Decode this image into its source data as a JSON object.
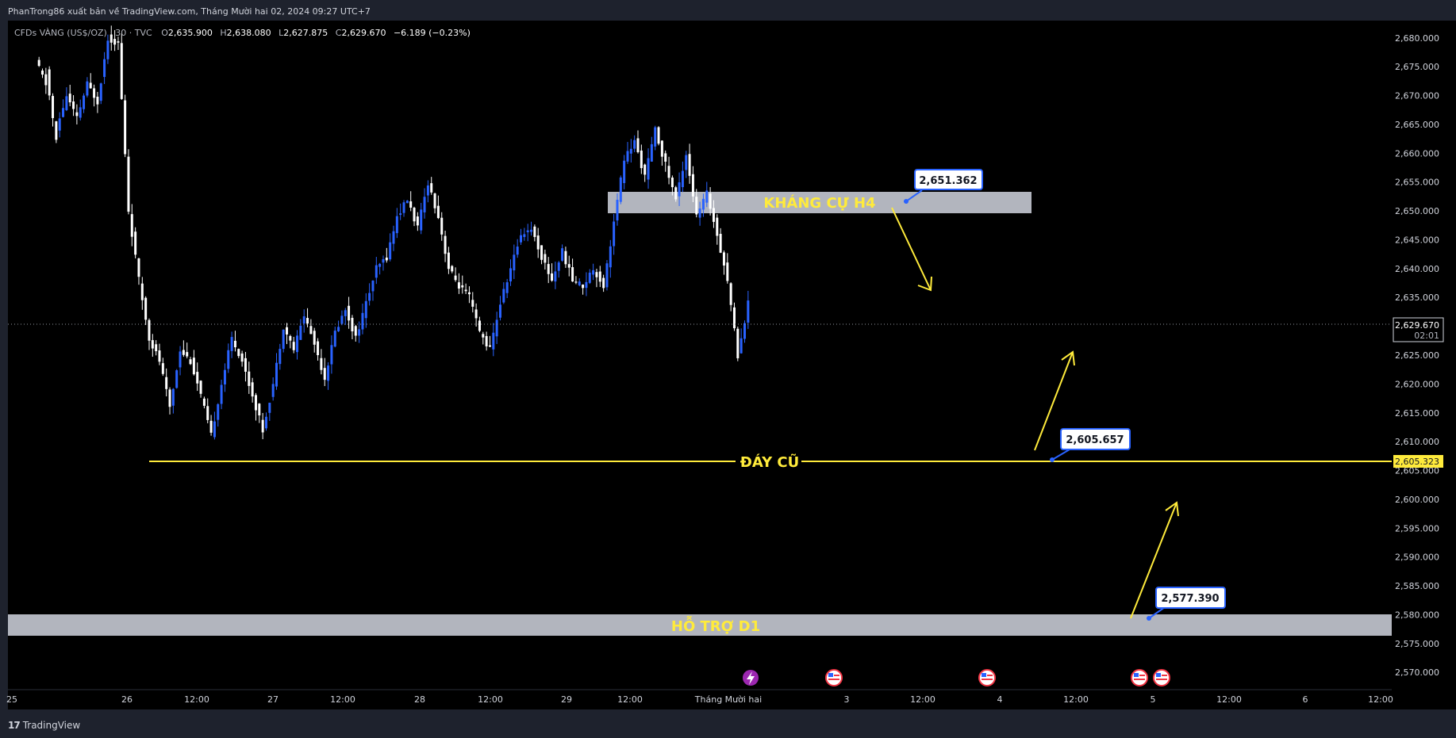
{
  "header": {
    "publish_line": "PhanTrong86 xuất bản về TradingView.com, Tháng Mười hai 02, 2024 09:27 UTC+7"
  },
  "legend": {
    "symbol": "CFDs VÀNG (US$/OZ) · 30 · TVC",
    "o_label": "O",
    "o": "2,635.900",
    "h_label": "H",
    "h": "2,638.080",
    "l_label": "L",
    "l": "2,627.875",
    "c_label": "C",
    "c": "2,629.670",
    "change": "−6.189 (−0.23%)"
  },
  "price_scale": {
    "ticks": [
      "2,680.000",
      "2,675.000",
      "2,670.000",
      "2,665.000",
      "2,660.000",
      "2,655.000",
      "2,650.000",
      "2,645.000",
      "2,640.000",
      "2,635.000",
      "2,630.000",
      "2,625.000",
      "2,620.000",
      "2,615.000",
      "2,610.000",
      "2,605.000",
      "2,600.000",
      "2,595.000",
      "2,590.000",
      "2,585.000",
      "2,580.000",
      "2,575.000",
      "2,570.000"
    ],
    "last_price_label": "2,629.670",
    "countdown": "02:01",
    "line_price_label": "2,605.323"
  },
  "time_scale": {
    "ticks": [
      "25",
      "26",
      "12:00",
      "27",
      "12:00",
      "28",
      "12:00",
      "29",
      "12:00",
      "Tháng Mười hai",
      "3",
      "12:00",
      "4",
      "12:00",
      "5",
      "12:00",
      "6",
      "12:00"
    ]
  },
  "annotations": {
    "resistance_label": "KHÁNG CỰ H4",
    "old_low_label": "ĐÁY CŨ",
    "support_label": "HỖ TRỢ D1",
    "callout_resistance": "2,651.362",
    "callout_old_low": "2,605.657",
    "callout_support": "2,577.390"
  },
  "footer": {
    "brand": "TradingView"
  },
  "colors": {
    "background": "#000000",
    "frame": "#1e222d",
    "bull": "#2962ff",
    "bear": "#ffffff",
    "annotation": "#ffeb3b",
    "zone": "#b2b5be",
    "text": "#d1d4dc"
  },
  "icons": {
    "event_lightning": "lightning-icon",
    "event_us": "us-flag-icon"
  },
  "chart_data": {
    "type": "candlestick",
    "symbol": "CFDs VÀNG (US$/OZ)",
    "interval": "30",
    "ylim": [
      2567,
      2683
    ],
    "y_ticks": [
      2680,
      2675,
      2670,
      2665,
      2660,
      2655,
      2650,
      2645,
      2640,
      2635,
      2630,
      2625,
      2620,
      2615,
      2610,
      2605,
      2600,
      2595,
      2590,
      2585,
      2580,
      2575,
      2570
    ],
    "x_ticks": [
      "25",
      "26",
      "12:00",
      "27",
      "12:00",
      "28",
      "12:00",
      "29",
      "12:00",
      "Tháng Mười hai",
      "3",
      "12:00",
      "4",
      "12:00",
      "5",
      "12:00",
      "6",
      "12:00"
    ],
    "last_price": 2629.67,
    "key_levels": [
      {
        "label": "KHÁNG CỰ H4",
        "type": "zone",
        "from": 2649.3,
        "to": 2653.0
      },
      {
        "label": "ĐÁY CŨ",
        "type": "line",
        "value": 2605.323
      },
      {
        "label": "HỖ TRỢ D1",
        "type": "zone",
        "from": 2575.0,
        "to": 2578.8
      }
    ],
    "callouts": [
      2651.362,
      2605.657,
      2577.39
    ],
    "price_path": [
      [
        2676,
        2672
      ],
      [
        2674,
        2662
      ],
      [
        2664,
        2670
      ],
      [
        2670,
        2666
      ],
      [
        2666,
        2672
      ],
      [
        2672,
        2669
      ],
      [
        2669,
        2680
      ],
      [
        2680,
        2679
      ],
      [
        2679,
        2650
      ],
      [
        2650,
        2638
      ],
      [
        2638,
        2628
      ],
      [
        2628,
        2624
      ],
      [
        2624,
        2616
      ],
      [
        2616,
        2626
      ],
      [
        2626,
        2624
      ],
      [
        2624,
        2618
      ],
      [
        2618,
        2611
      ],
      [
        2611,
        2620
      ],
      [
        2620,
        2628
      ],
      [
        2628,
        2624
      ],
      [
        2624,
        2618
      ],
      [
        2618,
        2612
      ],
      [
        2612,
        2620
      ],
      [
        2620,
        2630
      ],
      [
        2630,
        2626
      ],
      [
        2626,
        2632
      ],
      [
        2632,
        2627
      ],
      [
        2627,
        2621
      ],
      [
        2621,
        2629
      ],
      [
        2629,
        2633
      ],
      [
        2633,
        2628
      ],
      [
        2628,
        2634
      ],
      [
        2634,
        2640
      ],
      [
        2640,
        2642
      ],
      [
        2642,
        2649
      ],
      [
        2649,
        2652
      ],
      [
        2652,
        2647
      ],
      [
        2647,
        2655
      ],
      [
        2655,
        2649
      ],
      [
        2649,
        2640
      ],
      [
        2640,
        2637
      ],
      [
        2637,
        2635
      ],
      [
        2635,
        2629
      ],
      [
        2629,
        2626
      ],
      [
        2626,
        2634
      ],
      [
        2634,
        2640
      ],
      [
        2640,
        2646
      ],
      [
        2646,
        2647
      ],
      [
        2647,
        2642
      ],
      [
        2642,
        2638
      ],
      [
        2638,
        2643
      ],
      [
        2643,
        2638
      ],
      [
        2638,
        2637
      ],
      [
        2637,
        2640
      ],
      [
        2640,
        2637
      ],
      [
        2637,
        2648
      ],
      [
        2648,
        2659
      ],
      [
        2659,
        2662
      ],
      [
        2662,
        2656
      ],
      [
        2656,
        2664
      ],
      [
        2664,
        2658
      ],
      [
        2658,
        2652
      ],
      [
        2652,
        2660
      ],
      [
        2660,
        2649
      ],
      [
        2649,
        2653
      ],
      [
        2653,
        2646
      ],
      [
        2646,
        2638
      ],
      [
        2638,
        2625
      ],
      [
        2625,
        2634
      ]
    ]
  }
}
